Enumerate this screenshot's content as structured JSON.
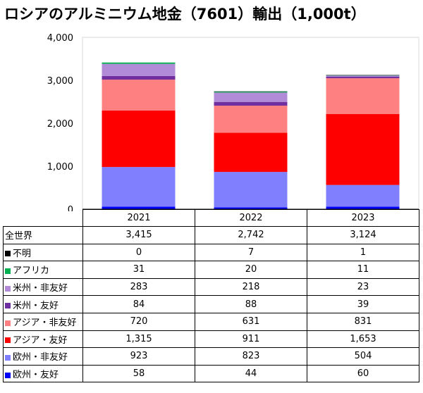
{
  "title": "ロシアのアルミニウム地金（7601）輸出（1,000t）",
  "chart_data": {
    "type": "bar",
    "stacked": true,
    "categories": [
      "2021",
      "2022",
      "2023"
    ],
    "ylim": [
      0,
      4000
    ],
    "yticks": [
      "0",
      "1,000",
      "2,000",
      "3,000",
      "4,000"
    ],
    "yticks_values": [
      0,
      1000,
      2000,
      3000,
      4000
    ],
    "grid": false,
    "legend": "data table below chart",
    "total": {
      "name": "全世界",
      "labels": [
        "3,415",
        "2,742",
        "3,124"
      ],
      "values": [
        3415,
        2742,
        3124
      ]
    },
    "series": [
      {
        "name": "欧州・友好",
        "color": "#0000ff",
        "values": [
          58,
          44,
          60
        ],
        "labels": [
          "58",
          "44",
          "60"
        ]
      },
      {
        "name": "欧州・非友好",
        "color": "#8080ff",
        "values": [
          923,
          823,
          504
        ],
        "labels": [
          "923",
          "823",
          "504"
        ]
      },
      {
        "name": "アジア・友好",
        "color": "#ff0000",
        "values": [
          1315,
          911,
          1653
        ],
        "labels": [
          "1,315",
          "911",
          "1,653"
        ]
      },
      {
        "name": "アジア・非友好",
        "color": "#ff8080",
        "values": [
          720,
          631,
          831
        ],
        "labels": [
          "720",
          "631",
          "831"
        ]
      },
      {
        "name": "米州・友好",
        "color": "#7030a0",
        "values": [
          84,
          88,
          39
        ],
        "labels": [
          "84",
          "88",
          "39"
        ]
      },
      {
        "name": "米州・非友好",
        "color": "#b28bd8",
        "values": [
          283,
          218,
          23
        ],
        "labels": [
          "283",
          "218",
          "23"
        ]
      },
      {
        "name": "アフリカ",
        "color": "#00b050",
        "values": [
          31,
          20,
          11
        ],
        "labels": [
          "31",
          "20",
          "11"
        ]
      },
      {
        "name": "不明",
        "color": "#000000",
        "values": [
          0,
          7,
          1
        ],
        "labels": [
          "0",
          "7",
          "1"
        ]
      }
    ]
  }
}
